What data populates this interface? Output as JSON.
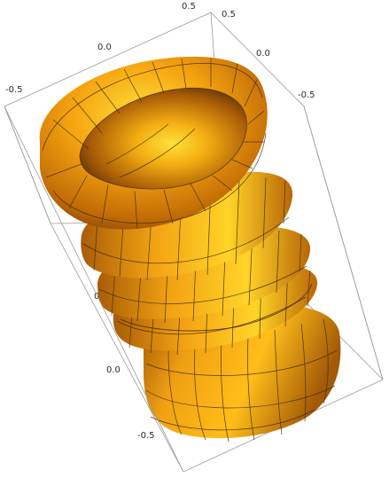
{
  "plot": {
    "tick_labels": {
      "top_a": "0.5",
      "top_b": "0.5",
      "top_zero_a": "0.0",
      "top_zero_b": "0.0",
      "top_neg_a": "-0.5",
      "top_neg_b": "-0.5",
      "left_pos": "0.5",
      "left_zero": "0.0",
      "left_neg": "-0.5"
    },
    "surface_colors": {
      "highlight": "#ffe23a",
      "mid": "#f5a30f",
      "shadow": "#a85c06",
      "deep": "#6b3a04",
      "mesh": "#3d2a0e",
      "box": "#9a9a9a"
    },
    "surface_shape": "stacked twisted torus rings (parametric 3D surface)",
    "ring_count": 4
  }
}
